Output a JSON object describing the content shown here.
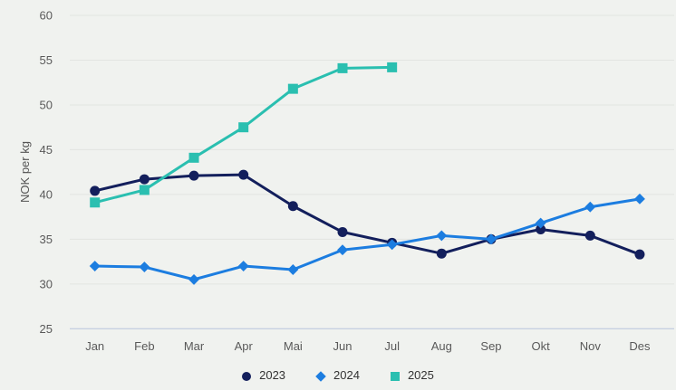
{
  "colors": {
    "background": "#f0f2ef",
    "grid": "#e2e5e1",
    "axis_line": "#b7c4de",
    "tick_text": "#595959",
    "axis_label_text": "#555555",
    "legend_text": "#333333"
  },
  "chart_data": {
    "type": "line",
    "title": "",
    "xlabel": "",
    "ylabel": "NOK per kg",
    "ylim": [
      25,
      60
    ],
    "yticks": [
      25,
      30,
      35,
      40,
      45,
      50,
      55,
      60
    ],
    "grid": true,
    "legend_position": "bottom",
    "categories": [
      "Jan",
      "Feb",
      "Mar",
      "Apr",
      "Mai",
      "Jun",
      "Jul",
      "Aug",
      "Sep",
      "Okt",
      "Nov",
      "Des"
    ],
    "series": [
      {
        "name": "2023",
        "color": "#131f5c",
        "marker": "circle",
        "values": [
          40.4,
          41.7,
          42.1,
          42.2,
          38.7,
          35.8,
          34.6,
          33.4,
          35.0,
          36.1,
          35.4,
          33.3
        ]
      },
      {
        "name": "2024",
        "color": "#1c7de0",
        "marker": "diamond",
        "values": [
          32.0,
          31.9,
          30.5,
          32.0,
          31.6,
          33.8,
          34.4,
          35.4,
          35.0,
          36.8,
          38.6,
          39.5
        ]
      },
      {
        "name": "2025",
        "color": "#2abfb0",
        "marker": "square",
        "values": [
          39.1,
          40.5,
          44.1,
          47.5,
          51.8,
          54.1,
          54.2,
          null,
          null,
          null,
          null,
          null
        ]
      }
    ]
  }
}
